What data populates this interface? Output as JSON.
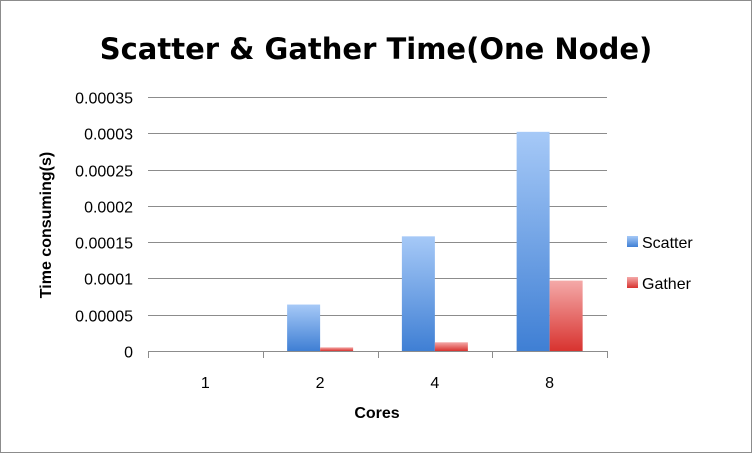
{
  "chart_data": {
    "type": "bar",
    "title": "Scatter & Gather Time(One Node)",
    "xlabel": "Cores",
    "ylabel": "Time consuming(s)",
    "categories": [
      "1",
      "2",
      "4",
      "8"
    ],
    "series": [
      {
        "name": "Scatter",
        "values": [
          0,
          6.4e-05,
          0.000158,
          0.000302
        ],
        "color": "#4f81bd"
      },
      {
        "name": "Gather",
        "values": [
          0,
          5e-06,
          1.2e-05,
          9.7e-05
        ],
        "color": "#c0504d"
      }
    ],
    "ylim": [
      0,
      0.00035
    ],
    "yticks": [
      "0",
      "0.00005",
      "0.0001",
      "0.00015",
      "0.0002",
      "0.00025",
      "0.0003",
      "0.00035"
    ],
    "grid": true,
    "legend_position": "right"
  }
}
